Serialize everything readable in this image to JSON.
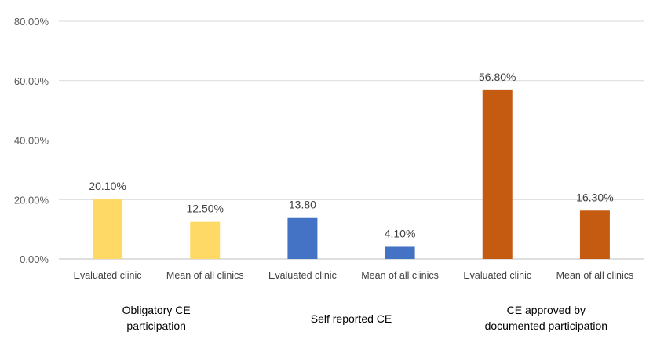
{
  "chart_data": {
    "type": "bar",
    "ylim": [
      0,
      80
    ],
    "y_ticks": [
      0,
      20,
      40,
      60,
      80
    ],
    "y_tick_labels": [
      "0.00%",
      "20.00%",
      "40.00%",
      "60.00%",
      "80.00%"
    ],
    "grid": true,
    "legend": "none",
    "groups": [
      {
        "label": "Obligatory CE participation",
        "label_lines": [
          "Obligatory CE",
          "participation"
        ],
        "color": "#FFD966",
        "bars": [
          {
            "category": "Evaluated clinic",
            "value": 20.1,
            "label": "20.10%"
          },
          {
            "category": "Mean of all clinics",
            "value": 12.5,
            "label": "12.50%"
          }
        ]
      },
      {
        "label": "Self reported CE",
        "label_lines": [
          "Self reported CE"
        ],
        "color": "#4472C4",
        "bars": [
          {
            "category": "Evaluated clinic",
            "value": 13.8,
            "label": "13.80"
          },
          {
            "category": "Mean of all clinics",
            "value": 4.1,
            "label": "4.10%"
          }
        ]
      },
      {
        "label": "CE approved by documented participation",
        "label_lines": [
          "CE approved by",
          "documented participation"
        ],
        "color": "#C55A11",
        "bars": [
          {
            "category": "Evaluated clinic",
            "value": 56.8,
            "label": "56.80%"
          },
          {
            "category": "Mean of all clinics",
            "value": 16.3,
            "label": "16.30%"
          }
        ]
      }
    ]
  }
}
